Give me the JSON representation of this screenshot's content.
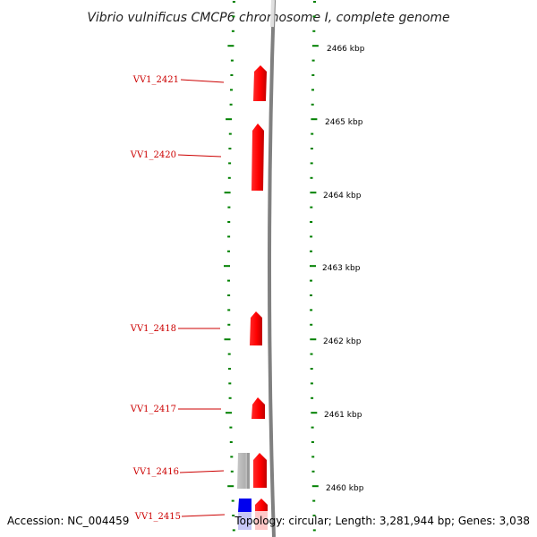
{
  "title": "Vibrio vulnificus CMCP6 chromosome I, complete genome",
  "accession": "Accession: NC_004459",
  "summary": "Topology: circular; Length: 3,281,944 bp; Genes: 3,038",
  "scale_labels": [
    "2466 kbp",
    "2465 kbp",
    "2464 kbp",
    "2463 kbp",
    "2462 kbp",
    "2461 kbp",
    "2460 kbp"
  ],
  "genes": [
    {
      "name": "VV1_2421",
      "kind": "cds",
      "color": "#ff0000"
    },
    {
      "name": "VV1_2420",
      "kind": "cds",
      "color": "#ff0000"
    },
    {
      "name": "VV1_2418",
      "kind": "cds",
      "color": "#ff0000"
    },
    {
      "name": "VV1_2417",
      "kind": "cds",
      "color": "#ff0000"
    },
    {
      "name": "VV1_2416",
      "kind": "cds",
      "color": "#ff0000"
    },
    {
      "name": "VV1_2415",
      "kind": "cds",
      "color": "#ff0000"
    }
  ],
  "colors": {
    "backbone": "#808080",
    "tick": "#008000",
    "cds": "#ff0000",
    "label_line": "#cc0000",
    "feature_gray": "#b8b8b8",
    "feature_blue": "#0000ee"
  }
}
